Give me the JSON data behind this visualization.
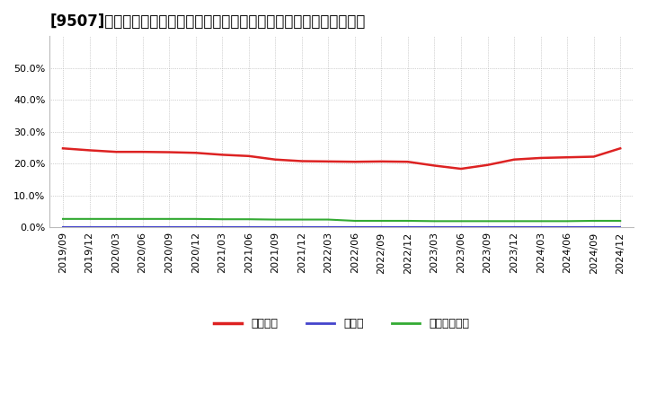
{
  "title": "[9507]　自己資本、のれん、繰延税金資産の総資産に対する比率の推移",
  "x_labels": [
    "2019/09",
    "2019/12",
    "2020/03",
    "2020/06",
    "2020/09",
    "2020/12",
    "2021/03",
    "2021/06",
    "2021/09",
    "2021/12",
    "2022/03",
    "2022/06",
    "2022/09",
    "2022/12",
    "2023/03",
    "2023/06",
    "2023/09",
    "2023/12",
    "2024/03",
    "2024/06",
    "2024/09",
    "2024/12"
  ],
  "equity_ratio": [
    0.248,
    0.242,
    0.237,
    0.237,
    0.236,
    0.234,
    0.228,
    0.224,
    0.213,
    0.208,
    0.207,
    0.206,
    0.207,
    0.206,
    0.194,
    0.184,
    0.196,
    0.213,
    0.218,
    0.22,
    0.222,
    0.248
  ],
  "noren_ratio": [
    0.0,
    0.0,
    0.0,
    0.0,
    0.0,
    0.0,
    0.0,
    0.0,
    0.0,
    0.0,
    0.0,
    0.0,
    0.0,
    0.0,
    0.0,
    0.0,
    0.0,
    0.0,
    0.0,
    0.0,
    0.0,
    0.0
  ],
  "deferred_tax_ratio": [
    0.027,
    0.027,
    0.027,
    0.027,
    0.027,
    0.027,
    0.026,
    0.026,
    0.025,
    0.025,
    0.025,
    0.021,
    0.021,
    0.021,
    0.02,
    0.02,
    0.02,
    0.02,
    0.02,
    0.02,
    0.021,
    0.021
  ],
  "equity_color": "#dd2222",
  "noren_color": "#4444cc",
  "deferred_color": "#33aa33",
  "bg_color": "#ffffff",
  "plot_bg_color": "#ffffff",
  "legend_equity": "自己資本",
  "legend_noren": "のれん",
  "legend_deferred": "繰延税金資産",
  "ylim": [
    0.0,
    0.6
  ],
  "yticks": [
    0.0,
    0.1,
    0.2,
    0.3,
    0.4,
    0.5
  ],
  "grid_color": "#aaaaaa",
  "title_fontsize": 12,
  "tick_fontsize": 8,
  "legend_fontsize": 9
}
